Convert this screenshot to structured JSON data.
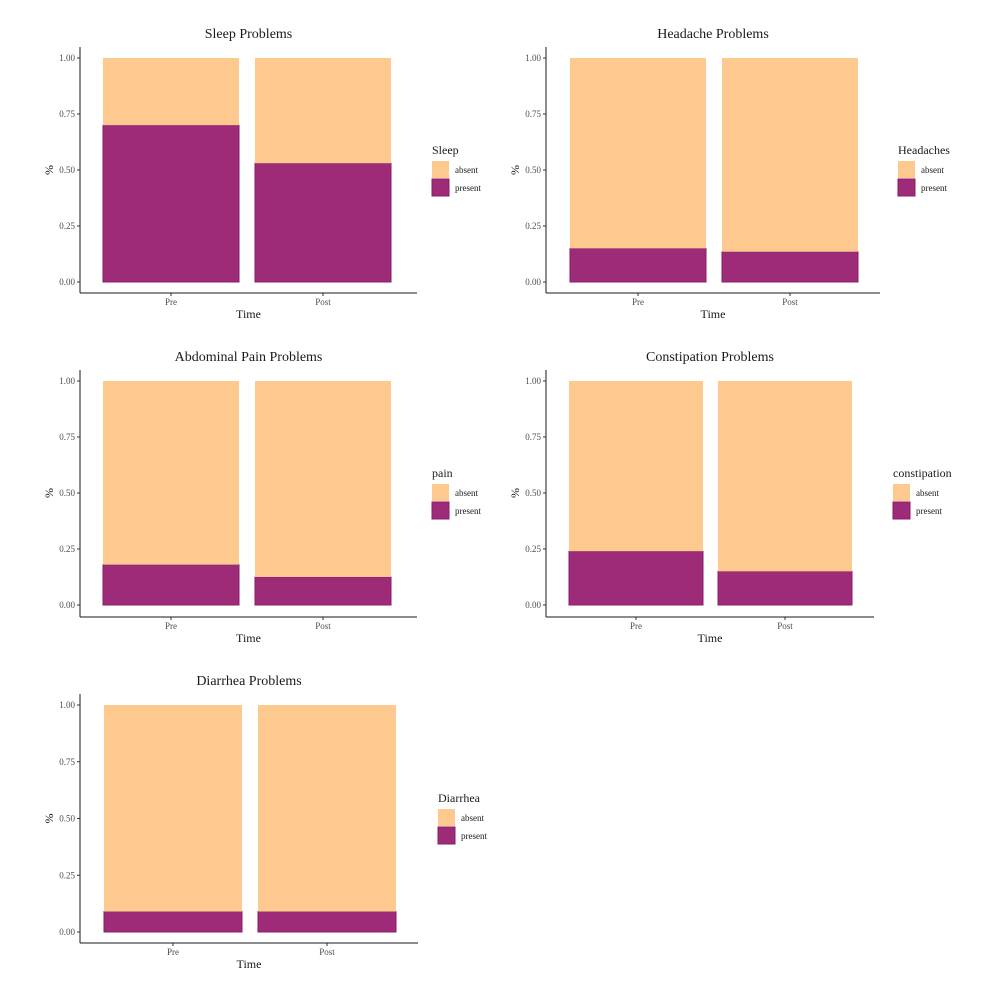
{
  "colors": {
    "absent": "#FDC98F",
    "present": "#9E2B78"
  },
  "legend_labels": [
    "absent",
    "present"
  ],
  "chart_data": [
    {
      "type": "bar",
      "stacked": true,
      "title": "Sleep Problems",
      "xlabel": "Time",
      "ylabel": "%",
      "legend_title": "Sleep",
      "legend_position": "right",
      "grid": false,
      "categories": [
        "Pre",
        "Post"
      ],
      "series": [
        {
          "name": "present",
          "values": [
            0.7,
            0.53
          ]
        },
        {
          "name": "absent",
          "values": [
            0.3,
            0.47
          ]
        }
      ],
      "ylim": [
        0,
        1
      ],
      "yticks": [
        "0.00",
        "0.25",
        "0.50",
        "0.75",
        "1.00"
      ]
    },
    {
      "type": "bar",
      "stacked": true,
      "title": "Headache Problems",
      "xlabel": "Time",
      "ylabel": "%",
      "legend_title": "Headaches",
      "legend_position": "right",
      "grid": false,
      "categories": [
        "Pre",
        "Post"
      ],
      "series": [
        {
          "name": "present",
          "values": [
            0.15,
            0.135
          ]
        },
        {
          "name": "absent",
          "values": [
            0.85,
            0.865
          ]
        }
      ],
      "ylim": [
        0,
        1
      ],
      "yticks": [
        "0.00",
        "0.25",
        "0.50",
        "0.75",
        "1.00"
      ]
    },
    {
      "type": "bar",
      "stacked": true,
      "title": "Abdominal Pain Problems",
      "xlabel": "Time",
      "ylabel": "%",
      "legend_title": "pain",
      "legend_position": "right",
      "grid": false,
      "categories": [
        "Pre",
        "Post"
      ],
      "series": [
        {
          "name": "present",
          "values": [
            0.18,
            0.125
          ]
        },
        {
          "name": "absent",
          "values": [
            0.82,
            0.875
          ]
        }
      ],
      "ylim": [
        0,
        1
      ],
      "yticks": [
        "0.00",
        "0.25",
        "0.50",
        "0.75",
        "1.00"
      ]
    },
    {
      "type": "bar",
      "stacked": true,
      "title": "Constipation Problems",
      "xlabel": "Time",
      "ylabel": "%",
      "legend_title": "constipation",
      "legend_position": "right",
      "grid": false,
      "categories": [
        "Pre",
        "Post"
      ],
      "series": [
        {
          "name": "present",
          "values": [
            0.24,
            0.15
          ]
        },
        {
          "name": "absent",
          "values": [
            0.76,
            0.85
          ]
        }
      ],
      "ylim": [
        0,
        1
      ],
      "yticks": [
        "0.00",
        "0.25",
        "0.50",
        "0.75",
        "1.00"
      ]
    },
    {
      "type": "bar",
      "stacked": true,
      "title": "Diarrhea Problems",
      "xlabel": "Time",
      "ylabel": "%",
      "legend_title": "Diarrhea",
      "legend_position": "right",
      "grid": false,
      "categories": [
        "Pre",
        "Post"
      ],
      "series": [
        {
          "name": "present",
          "values": [
            0.09,
            0.09
          ]
        },
        {
          "name": "absent",
          "values": [
            0.91,
            0.91
          ]
        }
      ],
      "ylim": [
        0,
        1
      ],
      "yticks": [
        "0.00",
        "0.25",
        "0.50",
        "0.75",
        "1.00"
      ]
    }
  ]
}
